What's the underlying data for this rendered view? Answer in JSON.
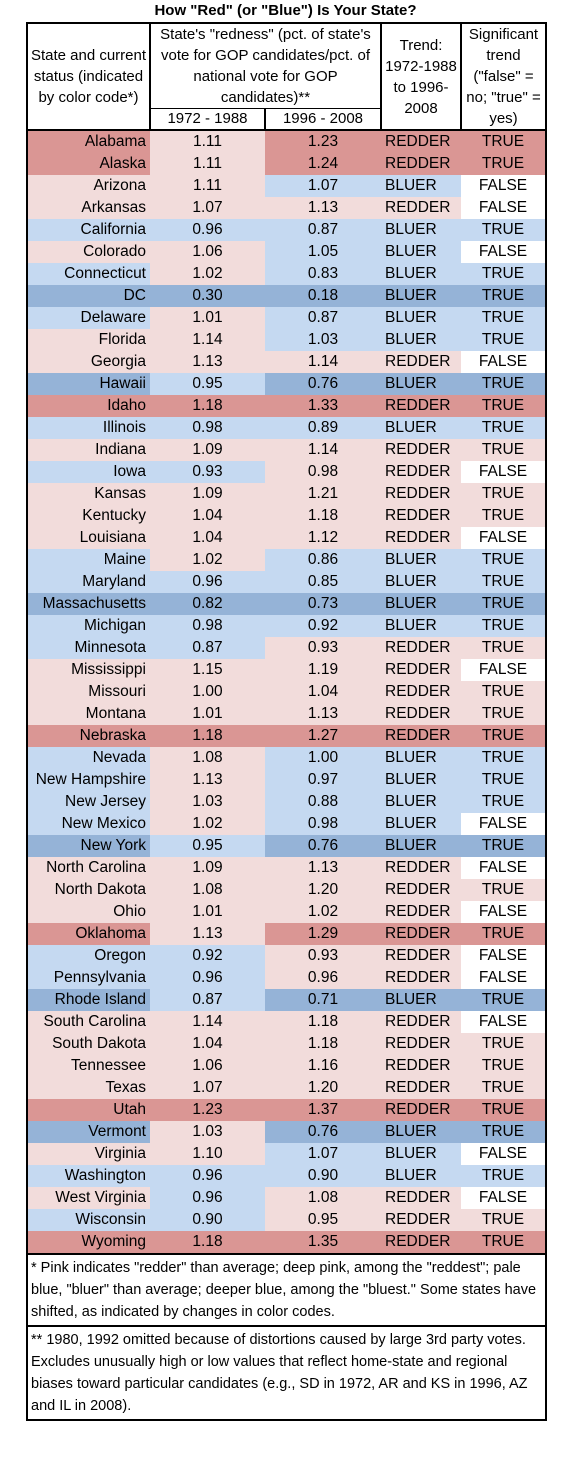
{
  "chart_data": {
    "type": "table",
    "title": "How \"Red\" (or \"Blue\") Is Your State?",
    "headers": {
      "state": "State and current status (indicated by color code*)",
      "redness": "State's \"redness\" (pct. of state's vote for GOP candidates/pct. of national vote for GOP candidates)**",
      "period1": "1972 - 1988",
      "period2": "1996 - 2008",
      "trend": "Trend: 1972-1988 to 1996-2008",
      "significant": "Significant trend (\"false\" = no; \"true\" = yes)"
    },
    "colors": {
      "deep_red": "#da9694",
      "pink": "#f2dcdb",
      "pale_blue": "#c5d9f1",
      "deep_blue": "#95b3d7",
      "none": "#ffffff"
    },
    "rows": [
      {
        "state": "Alabama",
        "v1": 1.11,
        "v2": 1.23,
        "trend": "REDDER",
        "sig": "TRUE",
        "c1": "deep_red",
        "c2": "pink",
        "c3": "deep_red",
        "c4": "deep_red"
      },
      {
        "state": "Alaska",
        "v1": 1.11,
        "v2": 1.24,
        "trend": "REDDER",
        "sig": "TRUE",
        "c1": "deep_red",
        "c2": "pink",
        "c3": "deep_red",
        "c4": "deep_red"
      },
      {
        "state": "Arizona",
        "v1": 1.11,
        "v2": 1.07,
        "trend": "BLUER",
        "sig": "FALSE",
        "c1": "pink",
        "c2": "pink",
        "c3": "pale_blue",
        "c4": "none"
      },
      {
        "state": "Arkansas",
        "v1": 1.07,
        "v2": 1.13,
        "trend": "REDDER",
        "sig": "FALSE",
        "c1": "pink",
        "c2": "pink",
        "c3": "pink",
        "c4": "none"
      },
      {
        "state": "California",
        "v1": 0.96,
        "v2": 0.87,
        "trend": "BLUER",
        "sig": "TRUE",
        "c1": "pale_blue",
        "c2": "pale_blue",
        "c3": "pale_blue",
        "c4": "pale_blue"
      },
      {
        "state": "Colorado",
        "v1": 1.06,
        "v2": 1.05,
        "trend": "BLUER",
        "sig": "FALSE",
        "c1": "pink",
        "c2": "pink",
        "c3": "pale_blue",
        "c4": "none"
      },
      {
        "state": "Connecticut",
        "v1": 1.02,
        "v2": 0.83,
        "trend": "BLUER",
        "sig": "TRUE",
        "c1": "pale_blue",
        "c2": "pink",
        "c3": "pale_blue",
        "c4": "pale_blue"
      },
      {
        "state": "DC",
        "v1": 0.3,
        "v2": 0.18,
        "trend": "BLUER",
        "sig": "TRUE",
        "c1": "deep_blue",
        "c2": "deep_blue",
        "c3": "deep_blue",
        "c4": "deep_blue"
      },
      {
        "state": "Delaware",
        "v1": 1.01,
        "v2": 0.87,
        "trend": "BLUER",
        "sig": "TRUE",
        "c1": "pale_blue",
        "c2": "pink",
        "c3": "pale_blue",
        "c4": "pale_blue"
      },
      {
        "state": "Florida",
        "v1": 1.14,
        "v2": 1.03,
        "trend": "BLUER",
        "sig": "TRUE",
        "c1": "pink",
        "c2": "pink",
        "c3": "pale_blue",
        "c4": "pale_blue"
      },
      {
        "state": "Georgia",
        "v1": 1.13,
        "v2": 1.14,
        "trend": "REDDER",
        "sig": "FALSE",
        "c1": "pink",
        "c2": "pink",
        "c3": "pink",
        "c4": "none"
      },
      {
        "state": "Hawaii",
        "v1": 0.95,
        "v2": 0.76,
        "trend": "BLUER",
        "sig": "TRUE",
        "c1": "deep_blue",
        "c2": "pale_blue",
        "c3": "deep_blue",
        "c4": "deep_blue"
      },
      {
        "state": "Idaho",
        "v1": 1.18,
        "v2": 1.33,
        "trend": "REDDER",
        "sig": "TRUE",
        "c1": "deep_red",
        "c2": "deep_red",
        "c3": "deep_red",
        "c4": "deep_red"
      },
      {
        "state": "Illinois",
        "v1": 0.98,
        "v2": 0.89,
        "trend": "BLUER",
        "sig": "TRUE",
        "c1": "pale_blue",
        "c2": "pale_blue",
        "c3": "pale_blue",
        "c4": "pale_blue"
      },
      {
        "state": "Indiana",
        "v1": 1.09,
        "v2": 1.14,
        "trend": "REDDER",
        "sig": "TRUE",
        "c1": "pink",
        "c2": "pink",
        "c3": "pink",
        "c4": "pink"
      },
      {
        "state": "Iowa",
        "v1": 0.93,
        "v2": 0.98,
        "trend": "REDDER",
        "sig": "FALSE",
        "c1": "pale_blue",
        "c2": "pale_blue",
        "c3": "pink",
        "c4": "none"
      },
      {
        "state": "Kansas",
        "v1": 1.09,
        "v2": 1.21,
        "trend": "REDDER",
        "sig": "TRUE",
        "c1": "pink",
        "c2": "pink",
        "c3": "pink",
        "c4": "pink"
      },
      {
        "state": "Kentucky",
        "v1": 1.04,
        "v2": 1.18,
        "trend": "REDDER",
        "sig": "TRUE",
        "c1": "pink",
        "c2": "pink",
        "c3": "pink",
        "c4": "pink"
      },
      {
        "state": "Louisiana",
        "v1": 1.04,
        "v2": 1.12,
        "trend": "REDDER",
        "sig": "FALSE",
        "c1": "pink",
        "c2": "pink",
        "c3": "pink",
        "c4": "none"
      },
      {
        "state": "Maine",
        "v1": 1.02,
        "v2": 0.86,
        "trend": "BLUER",
        "sig": "TRUE",
        "c1": "pale_blue",
        "c2": "pink",
        "c3": "pale_blue",
        "c4": "pale_blue"
      },
      {
        "state": "Maryland",
        "v1": 0.96,
        "v2": 0.85,
        "trend": "BLUER",
        "sig": "TRUE",
        "c1": "pale_blue",
        "c2": "pale_blue",
        "c3": "pale_blue",
        "c4": "pale_blue"
      },
      {
        "state": "Massachusetts",
        "v1": 0.82,
        "v2": 0.73,
        "trend": "BLUER",
        "sig": "TRUE",
        "c1": "deep_blue",
        "c2": "deep_blue",
        "c3": "deep_blue",
        "c4": "deep_blue"
      },
      {
        "state": "Michigan",
        "v1": 0.98,
        "v2": 0.92,
        "trend": "BLUER",
        "sig": "TRUE",
        "c1": "pale_blue",
        "c2": "pale_blue",
        "c3": "pale_blue",
        "c4": "pale_blue"
      },
      {
        "state": "Minnesota",
        "v1": 0.87,
        "v2": 0.93,
        "trend": "REDDER",
        "sig": "TRUE",
        "c1": "pale_blue",
        "c2": "pale_blue",
        "c3": "pink",
        "c4": "pink"
      },
      {
        "state": "Mississippi",
        "v1": 1.15,
        "v2": 1.19,
        "trend": "REDDER",
        "sig": "FALSE",
        "c1": "pink",
        "c2": "pink",
        "c3": "pink",
        "c4": "none"
      },
      {
        "state": "Missouri",
        "v1": 1.0,
        "v2": 1.04,
        "trend": "REDDER",
        "sig": "TRUE",
        "c1": "pink",
        "c2": "pink",
        "c3": "pink",
        "c4": "pink"
      },
      {
        "state": "Montana",
        "v1": 1.01,
        "v2": 1.13,
        "trend": "REDDER",
        "sig": "TRUE",
        "c1": "pink",
        "c2": "pink",
        "c3": "pink",
        "c4": "pink"
      },
      {
        "state": "Nebraska",
        "v1": 1.18,
        "v2": 1.27,
        "trend": "REDDER",
        "sig": "TRUE",
        "c1": "deep_red",
        "c2": "deep_red",
        "c3": "deep_red",
        "c4": "deep_red"
      },
      {
        "state": "Nevada",
        "v1": 1.08,
        "v2": 1.0,
        "trend": "BLUER",
        "sig": "TRUE",
        "c1": "pale_blue",
        "c2": "pink",
        "c3": "pale_blue",
        "c4": "pale_blue"
      },
      {
        "state": "New Hampshire",
        "v1": 1.13,
        "v2": 0.97,
        "trend": "BLUER",
        "sig": "TRUE",
        "c1": "pale_blue",
        "c2": "pink",
        "c3": "pale_blue",
        "c4": "pale_blue"
      },
      {
        "state": "New Jersey",
        "v1": 1.03,
        "v2": 0.88,
        "trend": "BLUER",
        "sig": "TRUE",
        "c1": "pale_blue",
        "c2": "pink",
        "c3": "pale_blue",
        "c4": "pale_blue"
      },
      {
        "state": "New Mexico",
        "v1": 1.02,
        "v2": 0.98,
        "trend": "BLUER",
        "sig": "FALSE",
        "c1": "pale_blue",
        "c2": "pink",
        "c3": "pale_blue",
        "c4": "none"
      },
      {
        "state": "New York",
        "v1": 0.95,
        "v2": 0.76,
        "trend": "BLUER",
        "sig": "TRUE",
        "c1": "deep_blue",
        "c2": "pale_blue",
        "c3": "deep_blue",
        "c4": "deep_blue"
      },
      {
        "state": "North Carolina",
        "v1": 1.09,
        "v2": 1.13,
        "trend": "REDDER",
        "sig": "FALSE",
        "c1": "pink",
        "c2": "pink",
        "c3": "pink",
        "c4": "none"
      },
      {
        "state": "North Dakota",
        "v1": 1.08,
        "v2": 1.2,
        "trend": "REDDER",
        "sig": "TRUE",
        "c1": "pink",
        "c2": "pink",
        "c3": "pink",
        "c4": "pink"
      },
      {
        "state": "Ohio",
        "v1": 1.01,
        "v2": 1.02,
        "trend": "REDDER",
        "sig": "FALSE",
        "c1": "pink",
        "c2": "pink",
        "c3": "pink",
        "c4": "none"
      },
      {
        "state": "Oklahoma",
        "v1": 1.13,
        "v2": 1.29,
        "trend": "REDDER",
        "sig": "TRUE",
        "c1": "deep_red",
        "c2": "pink",
        "c3": "deep_red",
        "c4": "deep_red"
      },
      {
        "state": "Oregon",
        "v1": 0.92,
        "v2": 0.93,
        "trend": "REDDER",
        "sig": "FALSE",
        "c1": "pale_blue",
        "c2": "pale_blue",
        "c3": "pink",
        "c4": "none"
      },
      {
        "state": "Pennsylvania",
        "v1": 0.96,
        "v2": 0.96,
        "trend": "REDDER",
        "sig": "FALSE",
        "c1": "pale_blue",
        "c2": "pale_blue",
        "c3": "pink",
        "c4": "none"
      },
      {
        "state": "Rhode Island",
        "v1": 0.87,
        "v2": 0.71,
        "trend": "BLUER",
        "sig": "TRUE",
        "c1": "deep_blue",
        "c2": "pale_blue",
        "c3": "deep_blue",
        "c4": "deep_blue"
      },
      {
        "state": "South Carolina",
        "v1": 1.14,
        "v2": 1.18,
        "trend": "REDDER",
        "sig": "FALSE",
        "c1": "pink",
        "c2": "pink",
        "c3": "pink",
        "c4": "none"
      },
      {
        "state": "South Dakota",
        "v1": 1.04,
        "v2": 1.18,
        "trend": "REDDER",
        "sig": "TRUE",
        "c1": "pink",
        "c2": "pink",
        "c3": "pink",
        "c4": "pink"
      },
      {
        "state": "Tennessee",
        "v1": 1.06,
        "v2": 1.16,
        "trend": "REDDER",
        "sig": "TRUE",
        "c1": "pink",
        "c2": "pink",
        "c3": "pink",
        "c4": "pink"
      },
      {
        "state": "Texas",
        "v1": 1.07,
        "v2": 1.2,
        "trend": "REDDER",
        "sig": "TRUE",
        "c1": "pink",
        "c2": "pink",
        "c3": "pink",
        "c4": "pink"
      },
      {
        "state": "Utah",
        "v1": 1.23,
        "v2": 1.37,
        "trend": "REDDER",
        "sig": "TRUE",
        "c1": "deep_red",
        "c2": "deep_red",
        "c3": "deep_red",
        "c4": "deep_red"
      },
      {
        "state": "Vermont",
        "v1": 1.03,
        "v2": 0.76,
        "trend": "BLUER",
        "sig": "TRUE",
        "c1": "deep_blue",
        "c2": "pink",
        "c3": "deep_blue",
        "c4": "deep_blue"
      },
      {
        "state": "Virginia",
        "v1": 1.1,
        "v2": 1.07,
        "trend": "BLUER",
        "sig": "FALSE",
        "c1": "pink",
        "c2": "pink",
        "c3": "pale_blue",
        "c4": "none"
      },
      {
        "state": "Washington",
        "v1": 0.96,
        "v2": 0.9,
        "trend": "BLUER",
        "sig": "TRUE",
        "c1": "pale_blue",
        "c2": "pale_blue",
        "c3": "pale_blue",
        "c4": "pale_blue"
      },
      {
        "state": "West Virginia",
        "v1": 0.96,
        "v2": 1.08,
        "trend": "REDDER",
        "sig": "FALSE",
        "c1": "pink",
        "c2": "pale_blue",
        "c3": "pink",
        "c4": "none"
      },
      {
        "state": "Wisconsin",
        "v1": 0.9,
        "v2": 0.95,
        "trend": "REDDER",
        "sig": "TRUE",
        "c1": "pale_blue",
        "c2": "pale_blue",
        "c3": "pink",
        "c4": "pink"
      },
      {
        "state": "Wyoming",
        "v1": 1.18,
        "v2": 1.35,
        "trend": "REDDER",
        "sig": "TRUE",
        "c1": "deep_red",
        "c2": "deep_red",
        "c3": "deep_red",
        "c4": "deep_red"
      }
    ],
    "notes": [
      "* Pink indicates \"redder\" than average; deep pink, among the \"reddest\"; pale blue, \"bluer\" than average; deeper blue, among the \"bluest.\" Some states have shifted, as indicated by changes in color codes.",
      "** 1980, 1992 omitted because of distortions caused by large 3rd party votes. Excludes unusually high or low values that reflect home-state and regional biases toward particular candidates (e.g., SD in 1972, AR and KS in 1996, AZ and IL in 2008)."
    ]
  }
}
